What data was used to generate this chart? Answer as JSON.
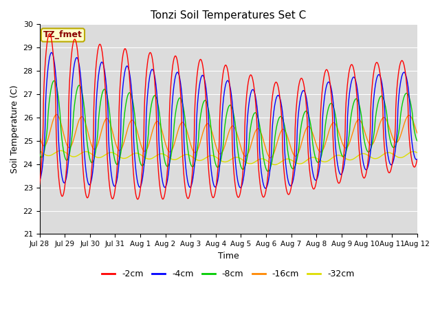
{
  "title": "Tonzi Soil Temperatures Set C",
  "xlabel": "Time",
  "ylabel": "Soil Temperature (C)",
  "ylim": [
    21.0,
    30.0
  ],
  "yticks": [
    21.0,
    22.0,
    23.0,
    24.0,
    25.0,
    26.0,
    27.0,
    28.0,
    29.0,
    30.0
  ],
  "xtick_labels": [
    "Jul 28",
    "Jul 29",
    "Jul 30",
    "Jul 31",
    "Aug 1",
    "Aug 2",
    "Aug 3",
    "Aug 4",
    "Aug 5",
    "Aug 6",
    "Aug 7",
    "Aug 8",
    "Aug 9",
    "Aug 10",
    "Aug 11",
    "Aug 12"
  ],
  "colors": {
    "-2cm": "#FF0000",
    "-4cm": "#0000FF",
    "-8cm": "#00CC00",
    "-16cm": "#FF8800",
    "-32cm": "#DDDD00"
  },
  "annotation_text": "TZ_fmet",
  "annotation_fg": "#880000",
  "annotation_bg": "#FFFFCC",
  "annotation_edge": "#BBAA00",
  "fig_bg": "#FFFFFF",
  "plot_bg": "#DCDCDC",
  "grid_color": "#FFFFFF",
  "figsize": [
    6.4,
    4.8
  ],
  "dpi": 100
}
